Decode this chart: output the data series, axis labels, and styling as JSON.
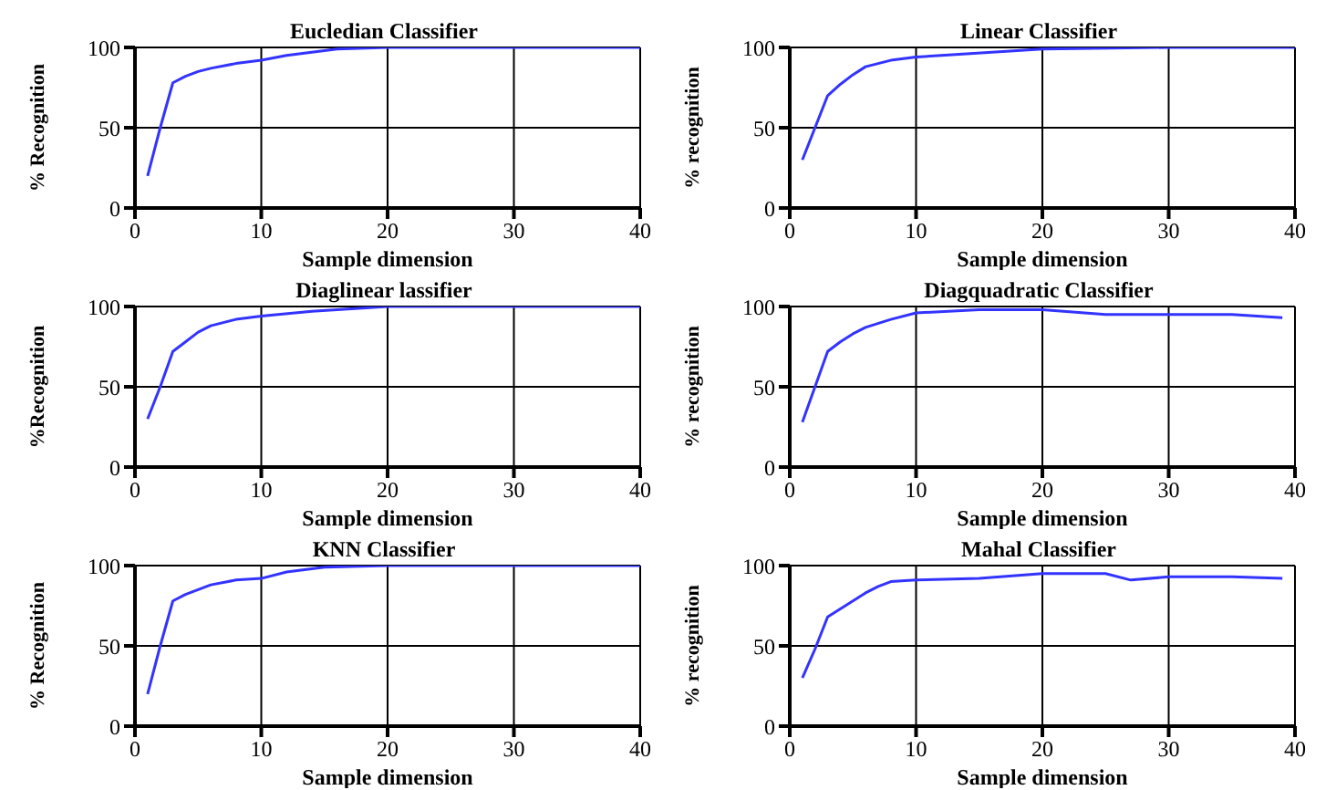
{
  "chart_data": [
    {
      "type": "line",
      "title": "Eucledian Classifier",
      "xlabel": "Sample dimension",
      "ylabel": "% Recognition",
      "xlim": [
        0,
        40
      ],
      "xticks": [
        0,
        10,
        20,
        30,
        40
      ],
      "ylim": [
        0,
        100
      ],
      "yticks": [
        0,
        50,
        100
      ],
      "grid": true,
      "line_style": "solid",
      "series": [
        {
          "color": "#3333ff",
          "x": [
            1,
            2,
            3,
            4,
            5,
            6,
            8,
            10,
            12,
            14,
            16,
            20,
            30,
            40
          ],
          "values": [
            20,
            50,
            78,
            82,
            85,
            87,
            90,
            92,
            95,
            97,
            99,
            100,
            100,
            100
          ]
        }
      ]
    },
    {
      "type": "line",
      "title": "Linear Classifier",
      "xlabel": "Sample dimension",
      "ylabel": "% recognition",
      "xlim": [
        0,
        40
      ],
      "xticks": [
        0,
        10,
        20,
        30,
        40
      ],
      "ylim": [
        0,
        100
      ],
      "yticks": [
        0,
        50,
        100
      ],
      "grid": true,
      "line_style": "solid",
      "series": [
        {
          "color": "#3333ff",
          "x": [
            1,
            2,
            3,
            4,
            5,
            6,
            8,
            10,
            14,
            18,
            20,
            30,
            40
          ],
          "values": [
            30,
            50,
            70,
            77,
            83,
            88,
            92,
            94,
            96,
            98,
            99,
            100,
            100
          ]
        }
      ]
    },
    {
      "type": "line",
      "title": "Diaglinear lassifier",
      "xlabel": "Sample dimension",
      "ylabel": "%Recognition",
      "xlim": [
        0,
        40
      ],
      "xticks": [
        0,
        10,
        20,
        30,
        40
      ],
      "ylim": [
        0,
        100
      ],
      "yticks": [
        0,
        50,
        100
      ],
      "grid": true,
      "line_style": "solid",
      "series": [
        {
          "color": "#3333ff",
          "x": [
            1,
            2,
            3,
            4,
            5,
            6,
            8,
            10,
            14,
            18,
            20,
            30,
            40
          ],
          "values": [
            30,
            50,
            72,
            78,
            84,
            88,
            92,
            94,
            97,
            99,
            100,
            100,
            100
          ]
        }
      ]
    },
    {
      "type": "line",
      "title": "Diagquadratic Classifier",
      "xlabel": "Sample dimension",
      "ylabel": "% recognition",
      "xlim": [
        0,
        40
      ],
      "xticks": [
        0,
        10,
        20,
        30,
        40
      ],
      "ylim": [
        0,
        100
      ],
      "yticks": [
        0,
        50,
        100
      ],
      "grid": true,
      "line_style": "solid",
      "series": [
        {
          "color": "#3333ff",
          "x": [
            1,
            2,
            3,
            4,
            5,
            6,
            8,
            10,
            15,
            20,
            25,
            30,
            35,
            39
          ],
          "values": [
            28,
            50,
            72,
            78,
            83,
            87,
            92,
            96,
            98,
            98,
            95,
            95,
            95,
            93
          ]
        }
      ]
    },
    {
      "type": "line",
      "title": "KNN Classifier",
      "xlabel": "Sample dimension",
      "ylabel": "% Recognition",
      "xlim": [
        0,
        40
      ],
      "xticks": [
        0,
        10,
        20,
        30,
        40
      ],
      "ylim": [
        0,
        100
      ],
      "yticks": [
        0,
        50,
        100
      ],
      "grid": true,
      "line_style": "solid",
      "series": [
        {
          "color": "#3333ff",
          "x": [
            1,
            2,
            3,
            4,
            5,
            6,
            8,
            10,
            12,
            15,
            20,
            30,
            40
          ],
          "values": [
            20,
            50,
            78,
            82,
            85,
            88,
            91,
            92,
            96,
            99,
            100,
            100,
            100
          ]
        }
      ]
    },
    {
      "type": "line",
      "title": "Mahal Classifier",
      "xlabel": "Sample dimension",
      "ylabel": "% recognition",
      "xlim": [
        0,
        40
      ],
      "xticks": [
        0,
        10,
        20,
        30,
        40
      ],
      "ylim": [
        0,
        100
      ],
      "yticks": [
        0,
        50,
        100
      ],
      "grid": true,
      "line_style": "solid",
      "series": [
        {
          "color": "#3333ff",
          "x": [
            1,
            2,
            3,
            4,
            5,
            6,
            7,
            8,
            10,
            15,
            20,
            25,
            27,
            30,
            35,
            39
          ],
          "values": [
            30,
            48,
            68,
            73,
            78,
            83,
            87,
            90,
            91,
            92,
            95,
            95,
            91,
            93,
            93,
            92
          ]
        }
      ]
    }
  ]
}
